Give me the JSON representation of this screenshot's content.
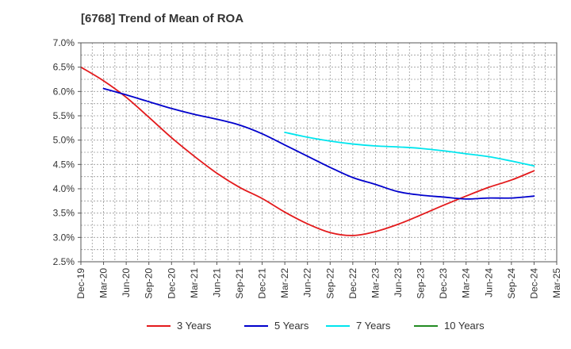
{
  "chart_data": {
    "type": "line",
    "title": "[6768]  Trend of Mean of ROA",
    "xlabel": "",
    "ylabel": "",
    "categories": [
      "Dec-19",
      "Mar-20",
      "Jun-20",
      "Sep-20",
      "Dec-20",
      "Mar-21",
      "Jun-21",
      "Sep-21",
      "Dec-21",
      "Mar-22",
      "Jun-22",
      "Sep-22",
      "Dec-22",
      "Mar-23",
      "Jun-23",
      "Sep-23",
      "Dec-23",
      "Mar-24",
      "Jun-24",
      "Sep-24",
      "Dec-24",
      "Mar-25"
    ],
    "ylim": [
      2.5,
      7.0
    ],
    "yticks": [
      "2.5%",
      "3.0%",
      "3.5%",
      "4.0%",
      "4.5%",
      "5.0%",
      "5.5%",
      "6.0%",
      "6.5%",
      "7.0%"
    ],
    "grid": true,
    "legend_position": "bottom",
    "series": [
      {
        "name": "3 Years",
        "color": "#e31a1c",
        "values": [
          6.5,
          6.22,
          5.88,
          5.47,
          5.05,
          4.67,
          4.32,
          4.03,
          3.8,
          3.52,
          3.28,
          3.1,
          3.04,
          3.12,
          3.27,
          3.46,
          3.66,
          3.85,
          4.03,
          4.18,
          4.37,
          null
        ]
      },
      {
        "name": "5 Years",
        "color": "#0000cc",
        "values": [
          null,
          6.06,
          5.93,
          5.79,
          5.65,
          5.53,
          5.43,
          5.31,
          5.13,
          4.9,
          4.67,
          4.44,
          4.23,
          4.09,
          3.94,
          3.87,
          3.83,
          3.79,
          3.81,
          3.81,
          3.85,
          null
        ]
      },
      {
        "name": "7 Years",
        "color": "#00e5ee",
        "values": [
          null,
          null,
          null,
          null,
          null,
          null,
          null,
          null,
          null,
          5.16,
          5.06,
          4.98,
          4.92,
          4.88,
          4.86,
          4.83,
          4.78,
          4.72,
          4.66,
          4.57,
          4.47,
          null
        ]
      },
      {
        "name": "10 Years",
        "color": "#228b22",
        "values": [
          null,
          null,
          null,
          null,
          null,
          null,
          null,
          null,
          null,
          null,
          null,
          null,
          null,
          null,
          null,
          null,
          null,
          null,
          null,
          null,
          null,
          null
        ]
      }
    ]
  }
}
